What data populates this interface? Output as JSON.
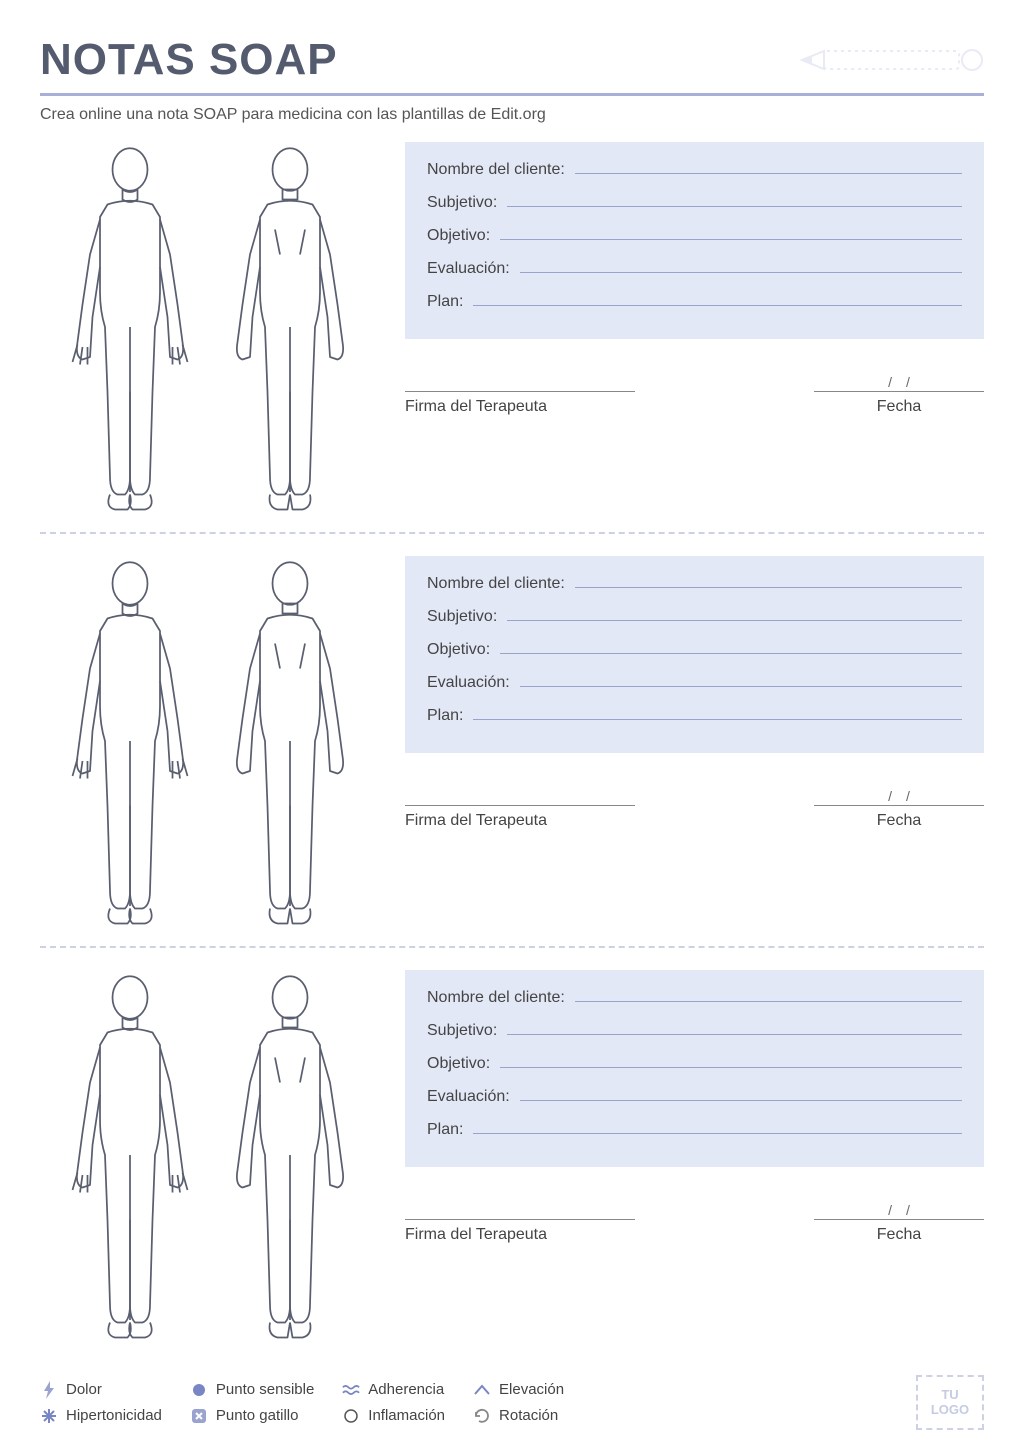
{
  "colors": {
    "accent": "#a8b0d8",
    "panel_bg": "#e3e8f7",
    "text": "#444444",
    "title": "#555b6e",
    "line": "#9aa3c8",
    "body_outline": "#5a5f70",
    "dash": "#ccd1e3",
    "icon_blue": "#7a86c4",
    "icon_fill": "#9aa3d0"
  },
  "title": "NOTAS SOAP",
  "subtitle": "Crea online una nota SOAP para medicina con las plantillas de Edit.org",
  "soap_fields": [
    "Nombre del cliente:",
    "Subjetivo:",
    "Objetivo:",
    "Evaluación:",
    "Plan:"
  ],
  "signature": {
    "therapist": "Firma del Terapeuta",
    "date": "Fecha",
    "date_placeholder": "/    /"
  },
  "sections_count": 3,
  "legend": [
    {
      "label": "Dolor",
      "icon": "bolt"
    },
    {
      "label": "Hipertonicidad",
      "icon": "asterisk"
    },
    {
      "label": "Punto sensible",
      "icon": "dot"
    },
    {
      "label": "Punto gatillo",
      "icon": "xbox"
    },
    {
      "label": "Adherencia",
      "icon": "waves"
    },
    {
      "label": "Inflamación",
      "icon": "circle"
    },
    {
      "label": "Elevación",
      "icon": "caret"
    },
    {
      "label": "Rotación",
      "icon": "rotate"
    }
  ],
  "logo_placeholder": "TU\nLOGO"
}
